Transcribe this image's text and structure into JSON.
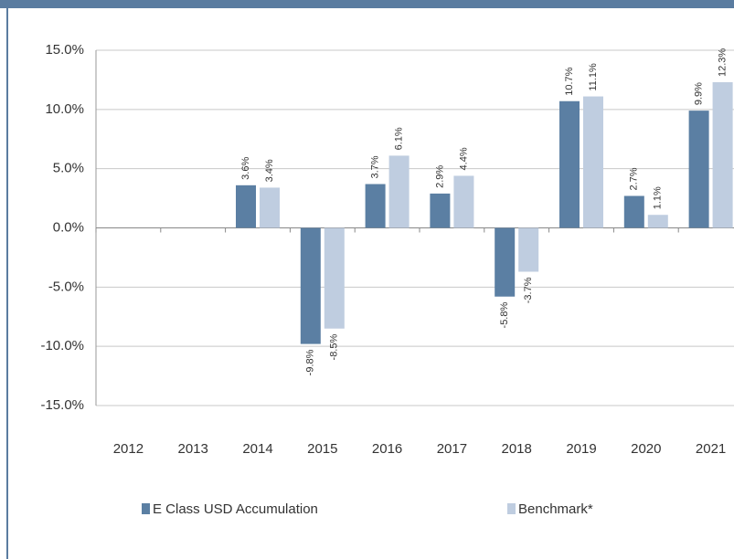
{
  "chart_data": {
    "type": "bar",
    "categories": [
      "2012",
      "2013",
      "2014",
      "2015",
      "2016",
      "2017",
      "2018",
      "2019",
      "2020",
      "2021"
    ],
    "series": [
      {
        "name": "E Class USD Accumulation",
        "color": "#5b7fa3",
        "values": [
          null,
          null,
          3.6,
          -9.8,
          3.7,
          2.9,
          -5.8,
          10.7,
          2.7,
          9.9
        ],
        "value_labels": [
          null,
          null,
          "3.6%",
          "-9.8%",
          "3.7%",
          "2.9%",
          "-5.8%",
          "10.7%",
          "2.7%",
          "9.9%"
        ]
      },
      {
        "name": "Benchmark*",
        "color": "#bfcde0",
        "values": [
          null,
          null,
          3.4,
          -8.5,
          6.1,
          4.4,
          -3.7,
          11.1,
          1.1,
          12.3
        ],
        "value_labels": [
          null,
          null,
          "3.4%",
          "-8.5%",
          "6.1%",
          "4.4%",
          "-3.7%",
          "11.1%",
          "1.1%",
          "12.3%"
        ]
      }
    ],
    "ylim": [
      -15,
      15
    ],
    "yticks": [
      {
        "value": -15,
        "label": "-15.0%"
      },
      {
        "value": -10,
        "label": "-10.0%"
      },
      {
        "value": -5,
        "label": "-5.0%"
      },
      {
        "value": 0,
        "label": "0.0%"
      },
      {
        "value": 5,
        "label": "5.0%"
      },
      {
        "value": 10,
        "label": "10.0%"
      },
      {
        "value": 15,
        "label": "15.0%"
      }
    ],
    "grid": true
  }
}
